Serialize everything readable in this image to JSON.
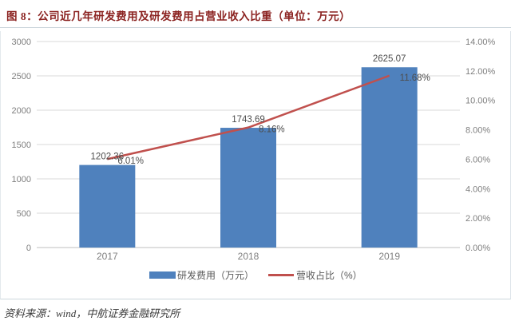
{
  "title": "图 8：公司近几年研发费用及研发费用占营业收入比重（单位：万元）",
  "source_note": "资料来源：wind，中航证券金融研究所",
  "chart_data": {
    "type": "bar",
    "subtype": "bar-line-combo",
    "title": "公司近几年研发费用及研发费用占营业收入比重（单位：万元）",
    "categories": [
      "2017",
      "2018",
      "2019"
    ],
    "series": [
      {
        "name": "研发费用（万元）",
        "type": "bar",
        "axis": "left",
        "values": [
          1202.36,
          1743.69,
          2625.07
        ],
        "color": "#4F81BD"
      },
      {
        "name": "营收占比（%）",
        "type": "line",
        "axis": "right",
        "values": [
          6.01,
          8.16,
          11.68
        ],
        "color": "#C0504D"
      }
    ],
    "left_axis": {
      "min": 0,
      "max": 3000,
      "step": 500,
      "ticks": [
        "0",
        "500",
        "1000",
        "1500",
        "2000",
        "2500",
        "3000"
      ]
    },
    "right_axis": {
      "min": 0,
      "max": 14,
      "step": 2,
      "ticks": [
        "0.00%",
        "2.00%",
        "4.00%",
        "6.00%",
        "8.00%",
        "10.00%",
        "12.00%",
        "14.00%"
      ]
    },
    "data_labels": {
      "bar": [
        "1202.36",
        "1743.69",
        "2625.07"
      ],
      "line": [
        "6.01%",
        "8.16%",
        "11.68%"
      ]
    },
    "legend": [
      {
        "label": "研发费用（万元）",
        "color": "#4F81BD",
        "shape": "rect"
      },
      {
        "label": "营收占比（%）",
        "color": "#C0504D",
        "shape": "line"
      }
    ],
    "grid": true,
    "legend_position": "bottom",
    "colors": {
      "gridline": "#d9d9d9",
      "axis_line": "#bfbfbf",
      "tick_label": "#7f7f7f",
      "data_label": "#4d4d4d",
      "title": "#8b2220"
    }
  }
}
